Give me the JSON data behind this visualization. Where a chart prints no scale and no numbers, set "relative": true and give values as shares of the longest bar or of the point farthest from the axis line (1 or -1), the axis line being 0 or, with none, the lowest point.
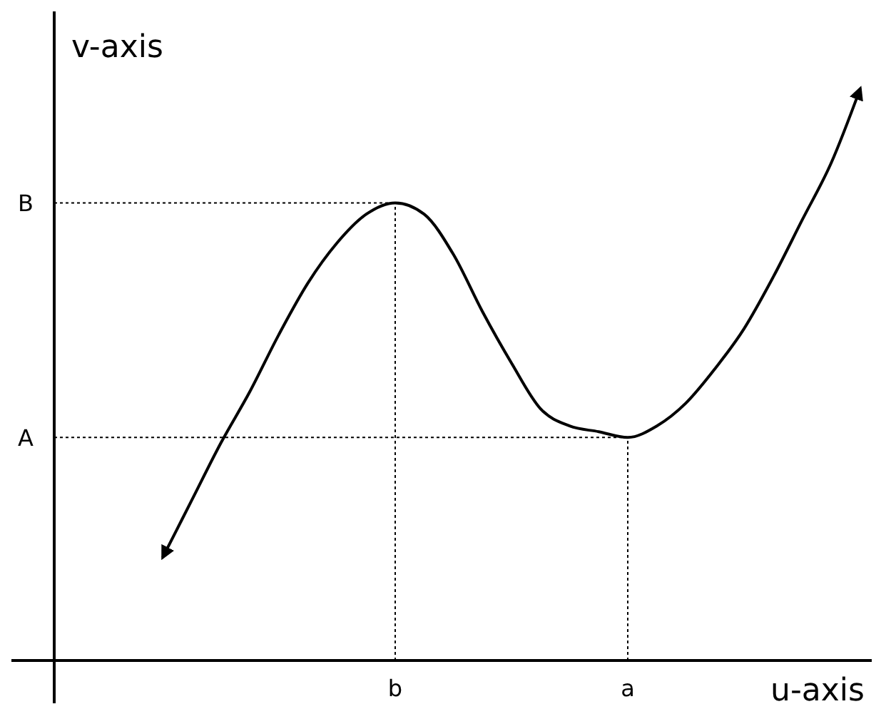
{
  "chart_data": {
    "type": "line",
    "relative": true,
    "xlabel": "u-axis",
    "ylabel": "v-axis",
    "categories": [
      null,
      null,
      null,
      null,
      null,
      null,
      null,
      null,
      "b",
      null,
      null,
      null,
      null,
      null,
      null,
      null,
      "a",
      null,
      null,
      null,
      null,
      null,
      null,
      null,
      null
    ],
    "series": [
      {
        "color": "#000000",
        "values": [
          0.18,
          0.28,
          0.38,
          0.47,
          0.57,
          0.66,
          0.73,
          0.78,
          0.8,
          0.78,
          0.71,
          0.61,
          0.52,
          0.44,
          0.41,
          0.4,
          0.39,
          0.41,
          0.45,
          0.51,
          0.58,
          0.67,
          0.77,
          0.87,
          1
        ]
      }
    ],
    "ref_lines": [
      {
        "axis": "y",
        "value": 0.8,
        "label": "B",
        "line_style": "dotted"
      },
      {
        "axis": "y",
        "value": 0.39,
        "label": "A",
        "line_style": "dotted"
      },
      {
        "axis": "x",
        "value": "b",
        "line_style": "dotted"
      },
      {
        "axis": "x",
        "value": "a",
        "line_style": "dotted"
      }
    ],
    "marker": "none",
    "line_style": "solid"
  }
}
